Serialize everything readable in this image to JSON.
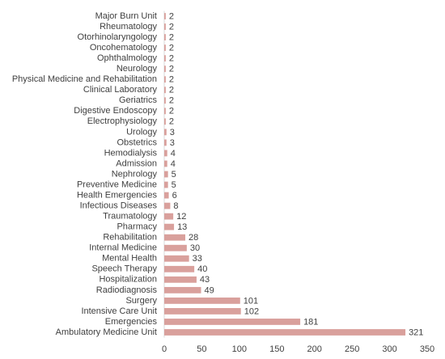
{
  "chart_data": {
    "type": "bar",
    "orientation": "horizontal",
    "categories": [
      "Major Burn Unit",
      "Rheumatology",
      "Otorhinolaryngology",
      "Oncohematology",
      "Ophthalmology",
      "Neurology",
      "Physical Medicine and Rehabilitation",
      "Clinical Laboratory",
      "Geriatrics",
      "Digestive Endoscopy",
      "Electrophysiology",
      "Urology",
      "Obstetrics",
      "Hemodialysis",
      "Admission",
      "Nephrology",
      "Preventive Medicine",
      "Health Emergencies",
      "Infectious Diseases",
      "Traumatology",
      "Pharmacy",
      "Rehabilitation",
      "Internal Medicine",
      "Mental Health",
      "Speech Therapy",
      "Hospitalization",
      "Radiodiagnosis",
      "Surgery",
      "Intensive Care Unit",
      "Emergencies",
      "Ambulatory Medicine Unit"
    ],
    "values": [
      2,
      2,
      2,
      2,
      2,
      2,
      2,
      2,
      2,
      2,
      2,
      3,
      3,
      4,
      4,
      5,
      5,
      6,
      8,
      12,
      13,
      28,
      30,
      33,
      40,
      43,
      49,
      101,
      102,
      181,
      321
    ],
    "color": "#d9a09c",
    "xlim": [
      0,
      350
    ],
    "xticks": [
      0,
      50,
      100,
      150,
      200,
      250,
      300,
      350
    ],
    "grid": false
  }
}
